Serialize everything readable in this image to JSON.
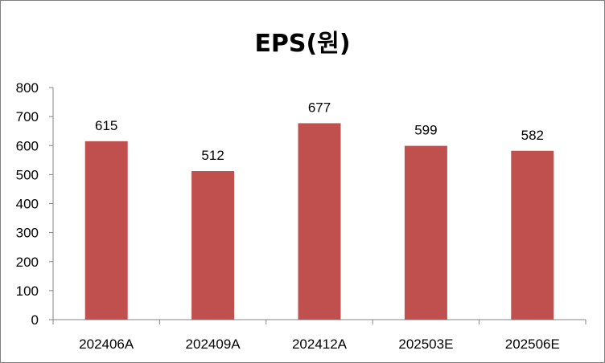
{
  "chart_data": {
    "type": "bar",
    "title": "EPS(원)",
    "categories": [
      "202406A",
      "202409A",
      "202412A",
      "202503E",
      "202506E"
    ],
    "values": [
      615,
      512,
      677,
      599,
      582
    ],
    "ylim": [
      0,
      800
    ],
    "yticks": [
      0,
      100,
      200,
      300,
      400,
      500,
      600,
      700,
      800
    ],
    "grid": false,
    "legend": "none",
    "bar_color": "#c0504d",
    "axis_color": "#868686"
  }
}
